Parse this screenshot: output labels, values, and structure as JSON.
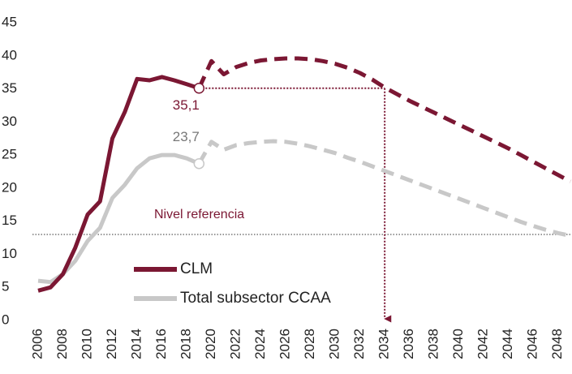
{
  "chart_data": {
    "type": "line",
    "x": [
      2006,
      2007,
      2008,
      2009,
      2010,
      2011,
      2012,
      2013,
      2014,
      2015,
      2016,
      2017,
      2018,
      2019,
      2020,
      2021,
      2022,
      2023,
      2024,
      2025,
      2026,
      2027,
      2028,
      2029,
      2030,
      2031,
      2032,
      2033,
      2034,
      2035,
      2036,
      2037,
      2038,
      2039,
      2040,
      2041,
      2042,
      2043,
      2044,
      2045,
      2046,
      2047,
      2048,
      2049
    ],
    "series": [
      {
        "name": "CLM",
        "color": "#7b1733",
        "dashed_from": 2019,
        "values": [
          4.5,
          5,
          7,
          11,
          16,
          18,
          27.5,
          31.5,
          36.5,
          36.3,
          36.8,
          36.3,
          35.7,
          35.1,
          39.2,
          37.2,
          38.3,
          38.9,
          39.3,
          39.5,
          39.6,
          39.6,
          39.5,
          39.2,
          38.8,
          38.2,
          37.4,
          36.4,
          35.2,
          34.2,
          33.2,
          32.3,
          31.4,
          30.5,
          29.6,
          28.7,
          27.8,
          26.9,
          26,
          25,
          24,
          23,
          22,
          21
        ]
      },
      {
        "name": "Total subsector CCAA",
        "color": "#c8c8c8",
        "dashed_from": 2019,
        "values": [
          6,
          5.8,
          7,
          9,
          12,
          14,
          18.5,
          20.5,
          23,
          24.5,
          25,
          25,
          24.5,
          23.7,
          27,
          25.8,
          26.5,
          26.8,
          27,
          27.1,
          27,
          26.7,
          26.3,
          25.8,
          25.3,
          24.6,
          24,
          23.3,
          22.6,
          21.9,
          21.2,
          20.5,
          19.8,
          19.1,
          18.4,
          17.7,
          17,
          16.3,
          15.6,
          14.9,
          14.3,
          13.7,
          13.2,
          12.8
        ]
      }
    ],
    "annotations": [
      {
        "series": 0,
        "x": 2019,
        "value": 35.1,
        "label": "35,1"
      },
      {
        "series": 1,
        "x": 2019,
        "value": 23.7,
        "label": "23,7"
      }
    ],
    "arrow": {
      "from_x": 2019,
      "to_x": 2034,
      "value": 35.1
    },
    "reference_line": {
      "value": 13,
      "label": "Nivel referencia"
    },
    "xlim": [
      2006,
      2049
    ],
    "xticks": [
      2006,
      2008,
      2010,
      2012,
      2014,
      2016,
      2018,
      2020,
      2022,
      2024,
      2026,
      2028,
      2030,
      2032,
      2034,
      2036,
      2038,
      2040,
      2042,
      2044,
      2046,
      2048
    ],
    "ylim": [
      0,
      45
    ],
    "yticks": [
      0,
      5,
      10,
      15,
      20,
      25,
      30,
      35,
      40,
      45
    ]
  }
}
